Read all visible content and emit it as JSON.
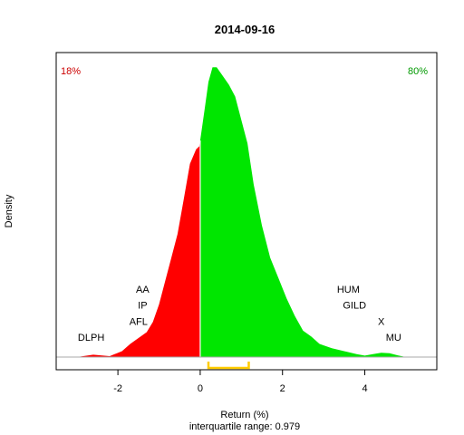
{
  "chart_data": {
    "type": "area",
    "title": "2014-09-16",
    "xlabel": "Return (%)",
    "ylabel": "Density",
    "subtitle": "interquartile range: 0.979",
    "xlim": [
      -3.5,
      5.75
    ],
    "ylim": [
      0,
      1
    ],
    "x_ticks": [
      -2,
      0,
      2,
      4
    ],
    "x_tick_labels": [
      "-2",
      "0",
      "2",
      "4"
    ],
    "split_x": 0,
    "colors": {
      "negative": "#ff0000",
      "positive": "#00e600",
      "iqr": "#ffcc00",
      "neg_pct": "#cc0000",
      "pos_pct": "#009900"
    },
    "negative_share_label": "18%",
    "positive_share_label": "80%",
    "iqr_range": [
      0.2,
      1.18
    ],
    "density": {
      "x": [
        -3.0,
        -2.6,
        -2.2,
        -1.9,
        -1.7,
        -1.5,
        -1.3,
        -1.15,
        -1.0,
        -0.85,
        -0.7,
        -0.55,
        -0.4,
        -0.25,
        -0.1,
        -0.02,
        0.0,
        0.1,
        0.2,
        0.3,
        0.4,
        0.55,
        0.7,
        0.85,
        1.0,
        1.15,
        1.3,
        1.5,
        1.7,
        1.9,
        2.1,
        2.3,
        2.5,
        2.7,
        2.9,
        3.2,
        3.5,
        3.8,
        4.0,
        4.2,
        4.4,
        4.6,
        4.8,
        5.0
      ],
      "y": [
        0.0,
        0.008,
        0.003,
        0.02,
        0.045,
        0.065,
        0.085,
        0.12,
        0.18,
        0.26,
        0.34,
        0.42,
        0.54,
        0.66,
        0.71,
        0.72,
        0.74,
        0.84,
        0.94,
        0.99,
        0.99,
        0.96,
        0.93,
        0.89,
        0.81,
        0.73,
        0.59,
        0.45,
        0.34,
        0.27,
        0.2,
        0.14,
        0.09,
        0.07,
        0.045,
        0.03,
        0.02,
        0.01,
        0.005,
        0.01,
        0.015,
        0.013,
        0.006,
        0.0
      ]
    },
    "annotations": [
      {
        "text": "AA",
        "x": -1.4,
        "y": 0.22
      },
      {
        "text": "IP",
        "x": -1.4,
        "y": 0.165
      },
      {
        "text": "AFL",
        "x": -1.5,
        "y": 0.11
      },
      {
        "text": "DLPH",
        "x": -2.65,
        "y": 0.055
      },
      {
        "text": "HUM",
        "x": 3.6,
        "y": 0.22
      },
      {
        "text": "GILD",
        "x": 3.75,
        "y": 0.165
      },
      {
        "text": "X",
        "x": 4.4,
        "y": 0.11
      },
      {
        "text": "MU",
        "x": 4.7,
        "y": 0.055
      }
    ]
  }
}
